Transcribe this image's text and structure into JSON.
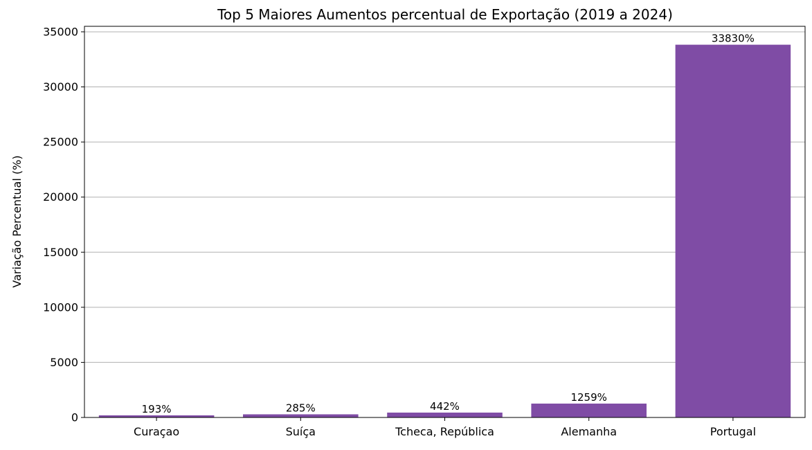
{
  "chart_data": {
    "type": "bar",
    "title": "Top 5 Maiores Aumentos percentual de Exportação (2019 a 2024)",
    "xlabel": "",
    "ylabel": "Variação Percentual (%)",
    "categories": [
      "Curaçao",
      "Suíça",
      "Tcheca, República",
      "Alemanha",
      "Portugal"
    ],
    "values": [
      193,
      285,
      442,
      1259,
      33830
    ],
    "data_labels": [
      "193%",
      "285%",
      "442%",
      "1259%",
      "33830%"
    ],
    "ylim": [
      0,
      35500
    ],
    "yticks": [
      0,
      5000,
      10000,
      15000,
      20000,
      25000,
      30000,
      35000
    ],
    "ytick_labels": [
      "0",
      "5000",
      "10000",
      "15000",
      "20000",
      "25000",
      "30000",
      "35000"
    ],
    "grid": "horizontal",
    "bar_color": "#7f4ca5"
  }
}
